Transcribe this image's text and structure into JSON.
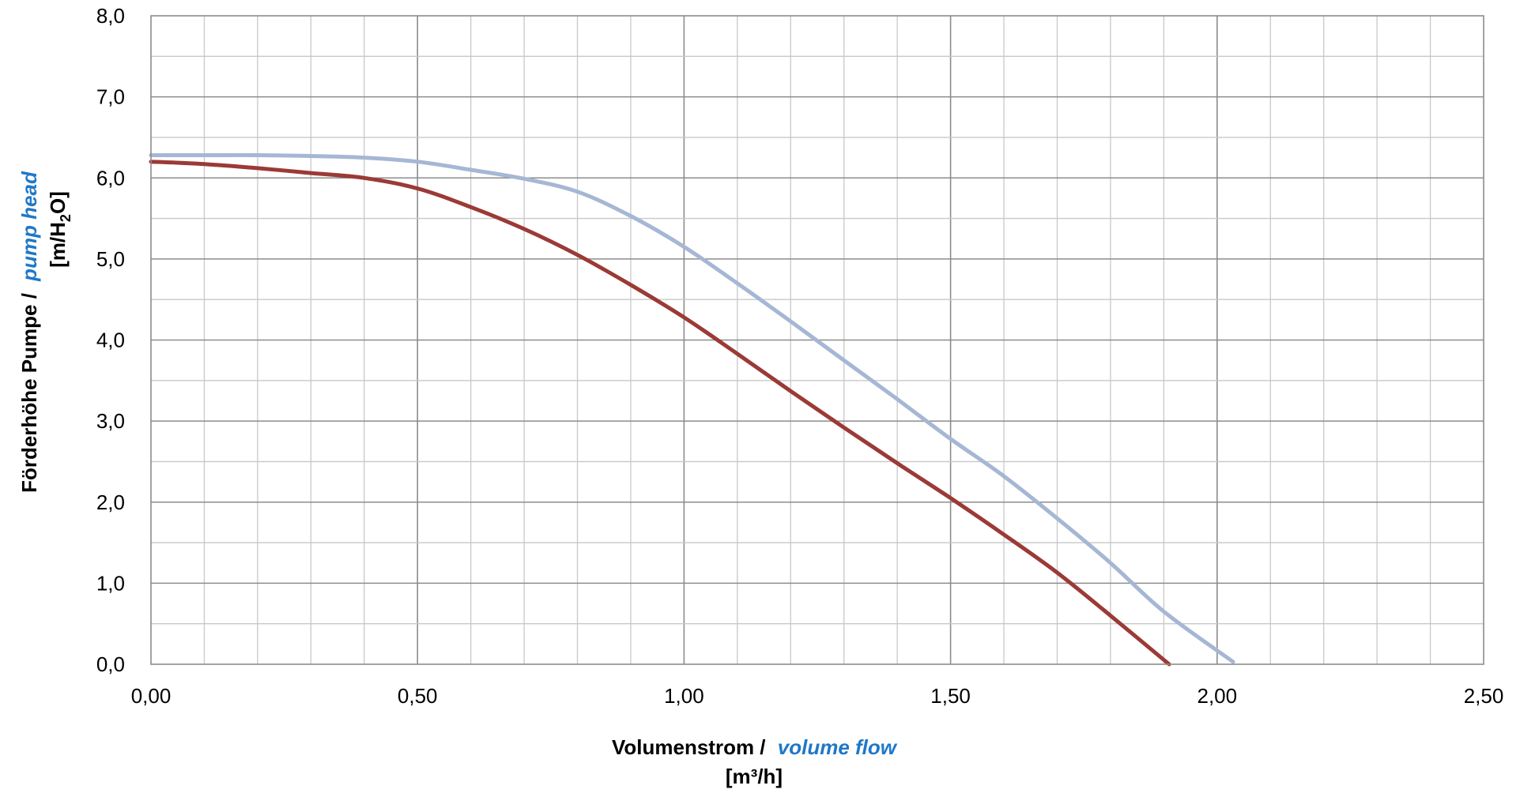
{
  "chart_data": {
    "type": "line",
    "title": "",
    "xlabel": {
      "de": "Volumenstrom /",
      "en": "volume flow",
      "unit": "[m³/h]"
    },
    "ylabel": {
      "de": "Förderhöhe Pumpe /",
      "en": "pump head",
      "unit_prefix": "[m/H",
      "unit_sub": "2",
      "unit_suffix": "O]"
    },
    "xlim": [
      0,
      2.5
    ],
    "ylim": [
      0,
      8
    ],
    "x_ticks": [
      "0,00",
      "0,50",
      "1,00",
      "1,50",
      "2,00",
      "2,50"
    ],
    "y_ticks": [
      "0,0",
      "1,0",
      "2,0",
      "3,0",
      "4,0",
      "5,0",
      "6,0",
      "7,0",
      "8,0"
    ],
    "x_tick_values": [
      0,
      0.5,
      1.0,
      1.5,
      2.0,
      2.5
    ],
    "y_tick_values": [
      0,
      1,
      2,
      3,
      4,
      5,
      6,
      7,
      8
    ],
    "grid": true,
    "series": [
      {
        "color": "#a5b7d4",
        "points": [
          [
            0.0,
            6.28
          ],
          [
            0.1,
            6.28
          ],
          [
            0.2,
            6.28
          ],
          [
            0.3,
            6.27
          ],
          [
            0.4,
            6.25
          ],
          [
            0.5,
            6.2
          ],
          [
            0.6,
            6.1
          ],
          [
            0.7,
            5.99
          ],
          [
            0.8,
            5.83
          ],
          [
            0.9,
            5.53
          ],
          [
            1.0,
            5.15
          ],
          [
            1.1,
            4.7
          ],
          [
            1.2,
            4.23
          ],
          [
            1.3,
            3.75
          ],
          [
            1.4,
            3.27
          ],
          [
            1.5,
            2.78
          ],
          [
            1.6,
            2.32
          ],
          [
            1.7,
            1.8
          ],
          [
            1.8,
            1.25
          ],
          [
            1.9,
            0.65
          ],
          [
            2.03,
            0.03
          ]
        ]
      },
      {
        "color": "#9b3a36",
        "points": [
          [
            0.0,
            6.2
          ],
          [
            0.1,
            6.17
          ],
          [
            0.2,
            6.12
          ],
          [
            0.3,
            6.06
          ],
          [
            0.4,
            6.0
          ],
          [
            0.5,
            5.87
          ],
          [
            0.6,
            5.64
          ],
          [
            0.7,
            5.37
          ],
          [
            0.8,
            5.05
          ],
          [
            0.9,
            4.68
          ],
          [
            1.0,
            4.28
          ],
          [
            1.1,
            3.83
          ],
          [
            1.2,
            3.37
          ],
          [
            1.3,
            2.92
          ],
          [
            1.4,
            2.48
          ],
          [
            1.5,
            2.05
          ],
          [
            1.6,
            1.6
          ],
          [
            1.7,
            1.13
          ],
          [
            1.8,
            0.6
          ],
          [
            1.91,
            0.0
          ]
        ]
      }
    ]
  }
}
